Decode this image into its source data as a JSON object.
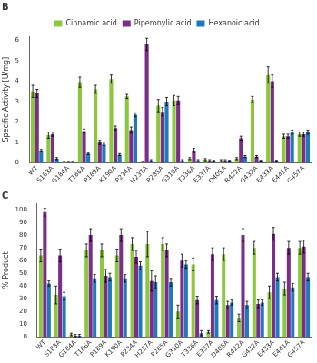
{
  "chart_data": [
    {
      "type": "bar",
      "title": "B",
      "categories": [
        "WT",
        "S183A",
        "G184A",
        "T186A",
        "P189A",
        "K190A",
        "P234A",
        "H237A",
        "P285A",
        "G310A",
        "T336A",
        "E337A",
        "D405A",
        "R422A",
        "G432A",
        "E433A",
        "E441A",
        "G457A"
      ],
      "series": [
        {
          "name": "Cinnamic acid",
          "color": "#8dc63f",
          "values": [
            3.5,
            1.35,
            0.05,
            3.95,
            3.6,
            4.1,
            3.25,
            0.05,
            2.8,
            3.05,
            0.2,
            0.15,
            0.1,
            0.2,
            3.1,
            4.3,
            1.3,
            1.4
          ],
          "errors": [
            0.3,
            0.15,
            0.02,
            0.25,
            0.2,
            0.2,
            0.1,
            0.02,
            0.3,
            0.25,
            0.05,
            0.05,
            0.05,
            0.05,
            0.15,
            0.4,
            0.1,
            0.1
          ]
        },
        {
          "name": "Piperonylic acid",
          "color": "#7b2d8b",
          "values": [
            3.4,
            1.4,
            0.05,
            1.55,
            1.0,
            1.7,
            1.6,
            5.8,
            2.5,
            3.05,
            0.6,
            0.1,
            0.1,
            1.2,
            0.3,
            4.0,
            1.3,
            1.4
          ],
          "errors": [
            0.2,
            0.1,
            0.02,
            0.1,
            0.1,
            0.1,
            0.15,
            0.3,
            0.2,
            0.2,
            0.1,
            0.05,
            0.05,
            0.1,
            0.05,
            0.3,
            0.1,
            0.1
          ]
        },
        {
          "name": "Hexanoic acid",
          "color": "#1f7ab8",
          "values": [
            0.6,
            0.2,
            0.05,
            0.45,
            0.9,
            0.4,
            2.35,
            0.1,
            3.0,
            0.1,
            0.1,
            0.1,
            0.1,
            0.3,
            0.1,
            0.1,
            1.5,
            1.5
          ],
          "errors": [
            0.05,
            0.05,
            0.02,
            0.05,
            0.05,
            0.05,
            0.1,
            0.05,
            0.2,
            0.05,
            0.05,
            0.02,
            0.02,
            0.05,
            0.02,
            0.02,
            0.1,
            0.1
          ]
        }
      ],
      "ylabel": "Specific Activity [U/mg]",
      "ylim": [
        0,
        6.2
      ],
      "yticks": [
        0,
        1,
        2,
        3,
        4,
        5,
        6
      ],
      "grid": false,
      "legend": "top"
    },
    {
      "type": "bar",
      "title": "C",
      "categories": [
        "WT",
        "S183A",
        "G184A",
        "T186A",
        "P189A",
        "K190A",
        "P234A",
        "H237A",
        "P285A",
        "G310A",
        "T336A",
        "E337A",
        "D405A",
        "R422A",
        "G432A",
        "E433A",
        "E441A",
        "G457A"
      ],
      "series": [
        {
          "name": "Cinnamic acid",
          "color": "#8dc63f",
          "values": [
            64,
            33,
            2,
            68,
            68,
            64,
            73,
            73,
            73,
            20,
            57,
            4,
            65,
            15,
            70,
            35,
            38,
            70
          ],
          "errors": [
            5,
            7,
            1,
            5,
            5,
            5,
            5,
            10,
            5,
            5,
            5,
            1,
            5,
            3,
            5,
            5,
            5,
            5
          ]
        },
        {
          "name": "Piperonylic acid",
          "color": "#7b2d8b",
          "values": [
            98,
            64,
            1,
            80,
            48,
            80,
            63,
            44,
            68,
            60,
            29,
            65,
            25,
            80,
            26,
            81,
            70,
            71
          ],
          "errors": [
            3,
            5,
            1,
            5,
            5,
            5,
            5,
            8,
            5,
            5,
            3,
            5,
            3,
            5,
            3,
            5,
            5,
            5
          ]
        },
        {
          "name": "Hexanoic acid",
          "color": "#1f7ab8",
          "values": [
            42,
            32,
            1,
            46,
            47,
            46,
            56,
            43,
            43,
            57,
            3,
            29,
            27,
            25,
            27,
            47,
            39,
            47
          ],
          "errors": [
            2,
            3,
            1,
            3,
            3,
            3,
            3,
            5,
            3,
            3,
            2,
            3,
            2,
            3,
            2,
            3,
            3,
            3
          ]
        }
      ],
      "ylabel": "% Product",
      "ylim": [
        0,
        105
      ],
      "yticks": [
        0,
        10,
        20,
        30,
        40,
        50,
        60,
        70,
        80,
        90,
        100
      ],
      "grid": false
    }
  ]
}
